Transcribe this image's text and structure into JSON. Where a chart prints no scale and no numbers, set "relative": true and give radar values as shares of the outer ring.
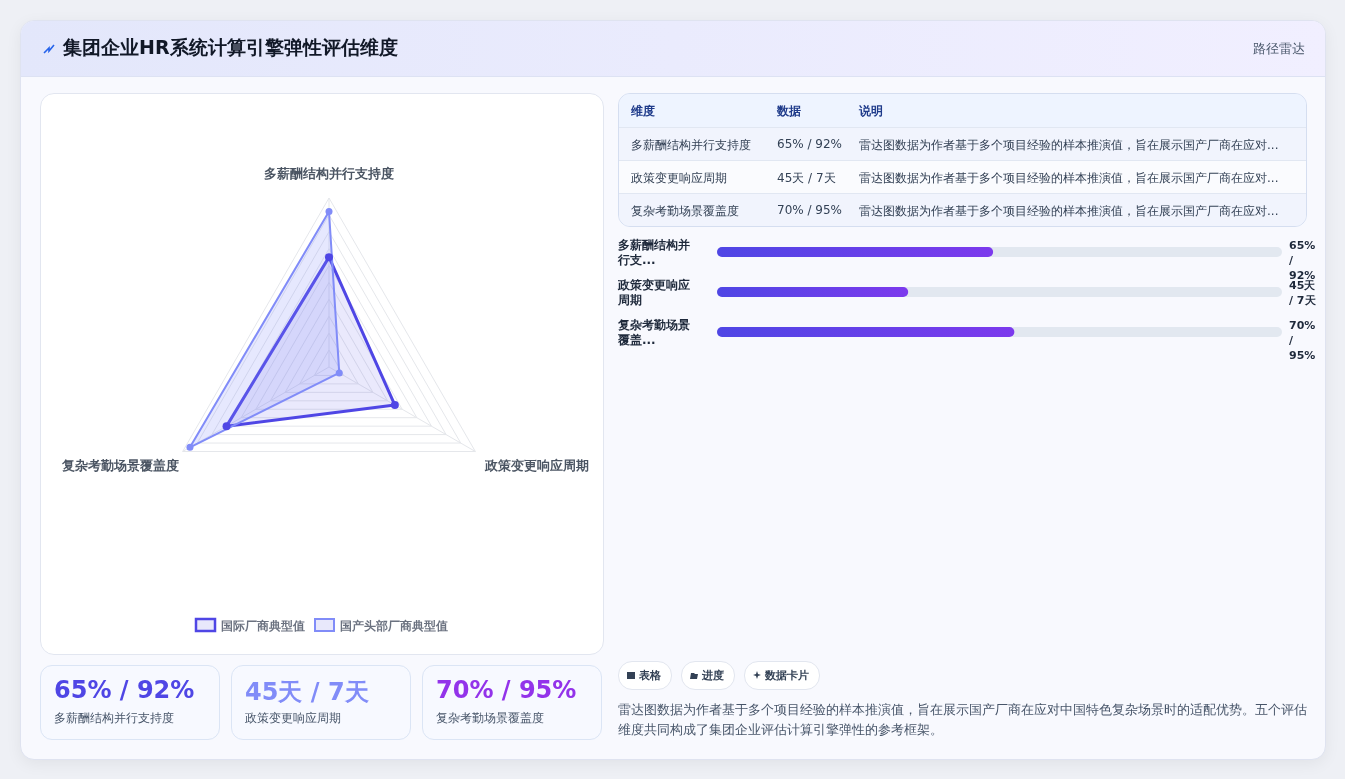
{
  "chart_data": [
    {
      "type": "radar",
      "categories": [
        "多薪酬结构并行支持度",
        "政策变更响应周期",
        "复杂考勤场景覆盖度"
      ],
      "relative": true,
      "grid": true,
      "legend": "bottom",
      "marker": "circle",
      "series": [
        {
          "name": "国际厂商典型值",
          "color": "#4f46e5",
          "values": [
            0.65,
            0.45,
            0.7
          ]
        },
        {
          "name": "国产头部厂商典型值",
          "color": "#818cf8",
          "values": [
            0.92,
            0.07,
            0.95
          ]
        }
      ]
    },
    {
      "type": "bar",
      "orientation": "horizontal",
      "xlim": [
        0,
        133
      ],
      "categories": [
        "多薪酬结构并行支...",
        "政策变更响应周期",
        "复杂考勤场景覆盖..."
      ],
      "values": [
        65,
        45,
        70
      ],
      "color": "#7c3aed",
      "value_labels": [
        "65% / 92%",
        "45天 / 7天",
        "70% / 95%"
      ]
    },
    {
      "type": "other",
      "title": "集团企业HR系统计算引擎弹性评估维度",
      "subtitle": "路径雷达",
      "colors": [
        "#4f46e5",
        "#818cf8",
        "#9333ea"
      ],
      "annotations": [
        "维度",
        "数据",
        "说明",
        "多薪酬结构并行支持度",
        "65% / 92%",
        "雷达图数据为作者基于多个项目经验的样本推演值，旨在展示国产厂商在应对...",
        "政策变更响应周期",
        "45天 / 7天",
        "雷达图数据为作者基于多个项目经验的样本推演值，旨在展示国产厂商在应对...",
        "复杂考勤场景覆盖度",
        "70% / 95%",
        "雷达图数据为作者基于多个项目经验的样本推演值，旨在展示国产厂商在应对...",
        "65% / 92%",
        "多薪酬结构并行支持度",
        "45天 / 7天",
        "政策变更响应周期",
        "70% / 95%",
        "复杂考勤场景覆盖度",
        "表格",
        "进度",
        "数据卡片",
        "雷达图数据为作者基于多个项目经验的样本推演值，旨在展示国产厂商在应对中国特色复杂场景时的适配优势。五个评估维度共同构成了集团企业评估计算引擎弹性的参考框架。"
      ]
    }
  ]
}
